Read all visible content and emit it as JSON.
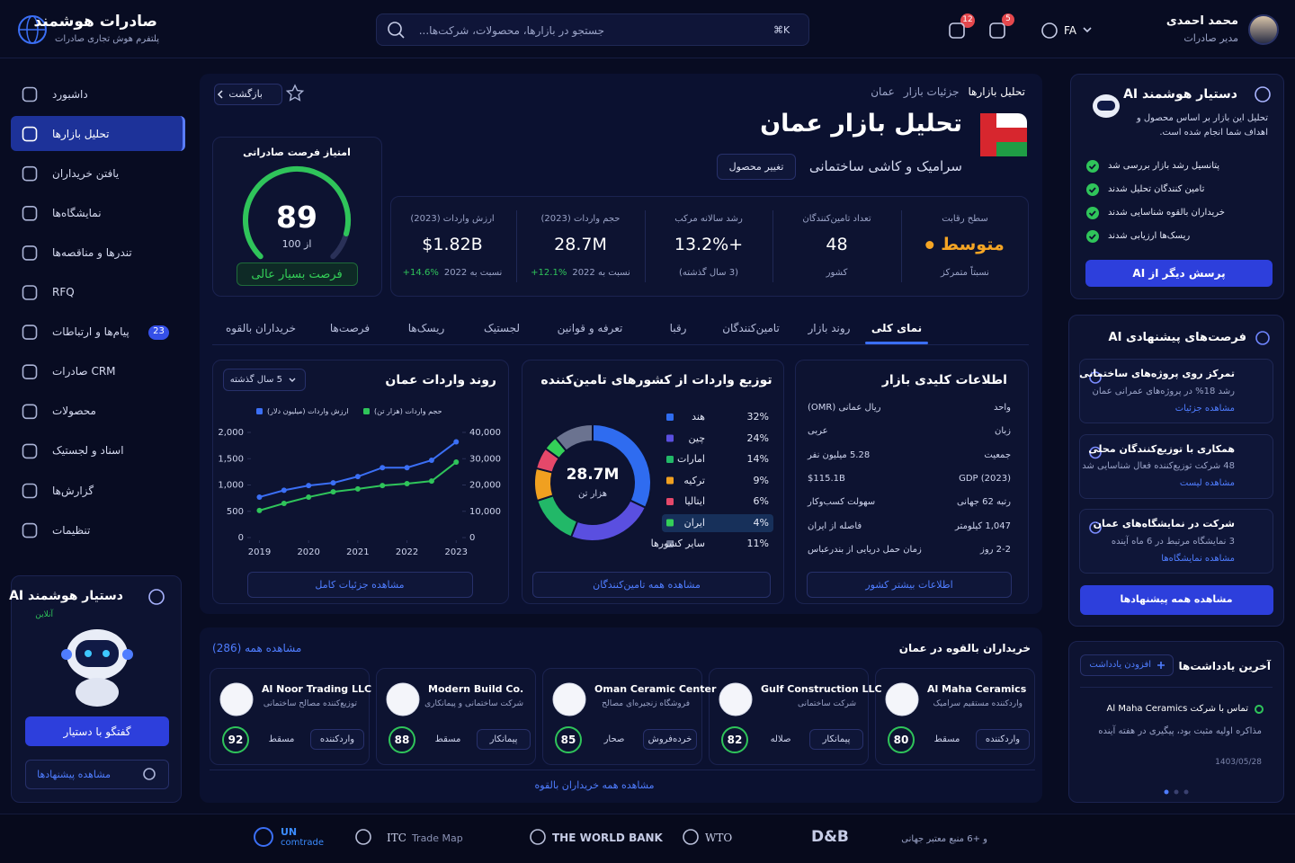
{
  "header": {
    "brand_title": "صادرات هوشمند",
    "brand_subtitle": "پلتفرم هوش تجاری صادرات",
    "search_placeholder": "جستجو در بازارها، محصولات، شرکت‌ها...",
    "search_shortcut": "⌘K",
    "notifications": "12",
    "messages": "5",
    "language": "FA",
    "user_name": "محمد احمدی",
    "user_role": "مدیر صادرات"
  },
  "sidebar": {
    "nav": [
      "داشبورد",
      "تحلیل بازارها",
      "یافتن خریداران",
      "نمایشگاه‌ها",
      "تندرها و مناقصه‌ها",
      "RFQ",
      "پیام‌ها و ارتباطات",
      "CRM صادرات",
      "محصولات",
      "اسناد و لجستیک",
      "گزارش‌ها",
      "تنظیمات"
    ],
    "active": 1,
    "badge_item": 6,
    "badge": "23",
    "assistant": {
      "title": "دستیار هوشمند AI",
      "status": "آنلاین",
      "chat_button": "گفتگو با دستیار",
      "suggestions_button": "مشاهده پیشنهادها"
    }
  },
  "main": {
    "breadcrumb": [
      "تحلیل بازارها",
      "جزئیات بازار",
      "عمان"
    ],
    "back": "بازگشت",
    "title": "تحلیل بازار عمان",
    "product": "سرامیک و کاشی ساختمانی",
    "change_product": "تغییر محصول",
    "score": {
      "title": "امتیاز فرصت صادراتی",
      "value": 89,
      "max": 100,
      "max_label": "از 100",
      "badge": "فرصت بسیار عالی"
    },
    "stats": [
      {
        "label": "سطح رقابت",
        "value": "متوسط",
        "note": "نسبتاً متمرکز",
        "color": "#f5a524"
      },
      {
        "label": "تعداد تامین‌کنندگان",
        "value": "48",
        "note": "کشور"
      },
      {
        "label": "رشد سالانه مرکب",
        "value": "+13.2%",
        "note": "(3 سال گذشته)"
      },
      {
        "label": "حجم واردات (2023)",
        "value": "28.7M",
        "note": "نسبت به 2022",
        "change": "+12.1%"
      },
      {
        "label": "ارزش واردات (2023)",
        "value": "$1.82B",
        "note": "نسبت به 2022",
        "change": "+14.6%"
      }
    ],
    "tabs": [
      "نمای کلی",
      "روند بازار",
      "تامین‌کنندگان",
      "رقبا",
      "تعرفه و قوانین",
      "لجستیک",
      "ریسک‌ها",
      "فرصت‌ها",
      "خریداران بالقوه"
    ],
    "active_tab": 0,
    "key_info": {
      "title": "اطلاعات کلیدی بازار",
      "rows": [
        {
          "label": "واحد",
          "value": "ریال عمانی (OMR)"
        },
        {
          "label": "زبان",
          "value": "عربی"
        },
        {
          "label": "جمعیت",
          "value": "5.28 میلیون نفر"
        },
        {
          "label": "GDP (2023)",
          "value": "$115.1B"
        },
        {
          "label": "رتبه 62 جهانی",
          "value": "سهولت کسب‌وکار"
        },
        {
          "label": "1,047 کیلومتر",
          "value": "فاصله از ایران"
        },
        {
          "label": "2-2 روز",
          "value": "زمان حمل دریایی از بندرعباس"
        }
      ],
      "button": "اطلاعات بیشتر کشور"
    }
  },
  "chart_data": [
    {
      "type": "line",
      "title": "روند واردات عمان",
      "range_label": "5 سال گذشته",
      "button": "مشاهده جزئیات کامل",
      "x": [
        2019,
        2019.5,
        2020,
        2020.5,
        2021,
        2021.5,
        2022,
        2022.5,
        2023
      ],
      "xlim": [
        2018.9,
        2023.05
      ],
      "xticks": [
        2019,
        2020,
        2021,
        2022,
        2023
      ],
      "ylim": [
        0,
        2000
      ],
      "yticks": [
        0,
        500,
        {
          "value": 1000,
          "label": "1,000"
        },
        {
          "value": 1500,
          "label": "1,500"
        },
        {
          "value": 2000,
          "label": "2,000"
        }
      ],
      "y2lim": [
        0,
        40000
      ],
      "y2ticks": [
        0,
        {
          "value": 10000,
          "label": "10,000"
        },
        {
          "value": 20000,
          "label": "20,000"
        },
        {
          "value": 30000,
          "label": "30,000"
        },
        {
          "value": 40000,
          "label": "40,000"
        }
      ],
      "grid": false,
      "series": [
        {
          "name": "ارزش واردات (میلیون دلار)",
          "color": "#3b6ff5",
          "values": [
            770,
            900,
            990,
            1040,
            1160,
            1330,
            1330,
            1470,
            1820
          ]
        },
        {
          "name": "حجم واردات (هزار تن)",
          "color": "#2fc45a",
          "axis": "y2",
          "values": [
            10300,
            13000,
            15400,
            17400,
            18500,
            19800,
            20500,
            21500,
            28700
          ]
        }
      ]
    },
    {
      "type": "donut",
      "title": "توزیع واردات از کشورهای تامین‌کننده",
      "center_value": "28.7M",
      "center_label": "هزار تن",
      "button": "مشاهده همه تامین‌کنندگان",
      "categories": [
        "هند",
        "چین",
        "امارات",
        "ترکیه",
        "ایتالیا",
        "ایران",
        "سایر کشورها"
      ],
      "values": [
        32,
        24,
        14,
        9,
        6,
        4,
        11
      ],
      "value_labels": [
        "32%",
        "24%",
        "14%",
        "9%",
        "6%",
        "4%",
        "11%"
      ],
      "colors": [
        "#2f6cf0",
        "#5a4fe0",
        "#22b868",
        "#f0a020",
        "#e5486a",
        "#34d058",
        "#6b7390"
      ],
      "highlight": 5
    }
  ],
  "buyers": {
    "title": "خریداران بالقوه در عمان",
    "view_all": "مشاهده همه (286)",
    "footer_link": "مشاهده همه خریداران بالقوه",
    "items": [
      {
        "name": "Al Maha Ceramics",
        "type": "واردکننده مستقیم سرامیک",
        "tag": "واردکننده",
        "city": "مسقط",
        "score": "80"
      },
      {
        "name": "Gulf Construction LLC",
        "type": "شرکت ساختمانی",
        "tag": "پیمانکار",
        "city": "صلاله",
        "score": "82"
      },
      {
        "name": "Oman Ceramic Center",
        "type": "فروشگاه زنجیره‌ای مصالح",
        "tag": "خرده‌فروش",
        "city": "صحار",
        "score": "85"
      },
      {
        "name": "Modern Build Co.",
        "type": "شرکت ساختمانی و پیمانکاری",
        "tag": "پیمانکار",
        "city": "مسقط",
        "score": "88"
      },
      {
        "name": "Al Noor Trading LLC",
        "type": "توزیع‌کننده مصالح ساختمانی",
        "tag": "واردکننده",
        "city": "مسقط",
        "score": "92"
      }
    ]
  },
  "assistant": {
    "title": "دستیار هوشمند AI",
    "text": "تحلیل این بازار بر اساس محصول و اهداف شما انجام شده است.",
    "checks": [
      "پتانسیل رشد بازار بررسی شد",
      "تامین کنندگان تحلیل شدند",
      "خریداران بالقوه شناسایی شدند",
      "ریسک‌ها ارزیابی شدند"
    ],
    "button": "پرسش دیگر از AI"
  },
  "opportunities": {
    "title": "فرصت‌های پیشنهادی AI",
    "items": [
      {
        "title": "تمرکز روی پروژه‌های ساختمانی",
        "text": "رشد 18% در پروژه‌های عمرانی عمان",
        "link": "مشاهده جزئیات"
      },
      {
        "title": "همکاری با توزیع‌کنندگان محلی",
        "text": "48 شرکت توزیع‌کننده فعال شناسایی شد",
        "link": "مشاهده لیست"
      },
      {
        "title": "شرکت در نمایشگاه‌های عمان",
        "text": "3 نمایشگاه مرتبط در 6 ماه آینده",
        "link": "مشاهده نمایشگاه‌ها"
      }
    ],
    "button": "مشاهده همه پیشنهادها"
  },
  "notes": {
    "title": "آخرین یادداشت‌ها",
    "add": "افزودن یادداشت",
    "item": {
      "title": "تماس با شرکت Al Maha Ceramics",
      "text": "مذاکره اولیه مثبت بود، پیگیری در هفته آینده",
      "date": "1403/05/28"
    }
  },
  "footer": {
    "sources": [
      {
        "name": "UN",
        "sub": "comtrade"
      },
      {
        "name": "ITC",
        "sub": "Trade Map"
      },
      {
        "name": "THE WORLD BANK"
      },
      {
        "name": "WTO"
      },
      {
        "name": "D&B"
      }
    ],
    "more": "و +6 منبع معتبر جهانی"
  }
}
